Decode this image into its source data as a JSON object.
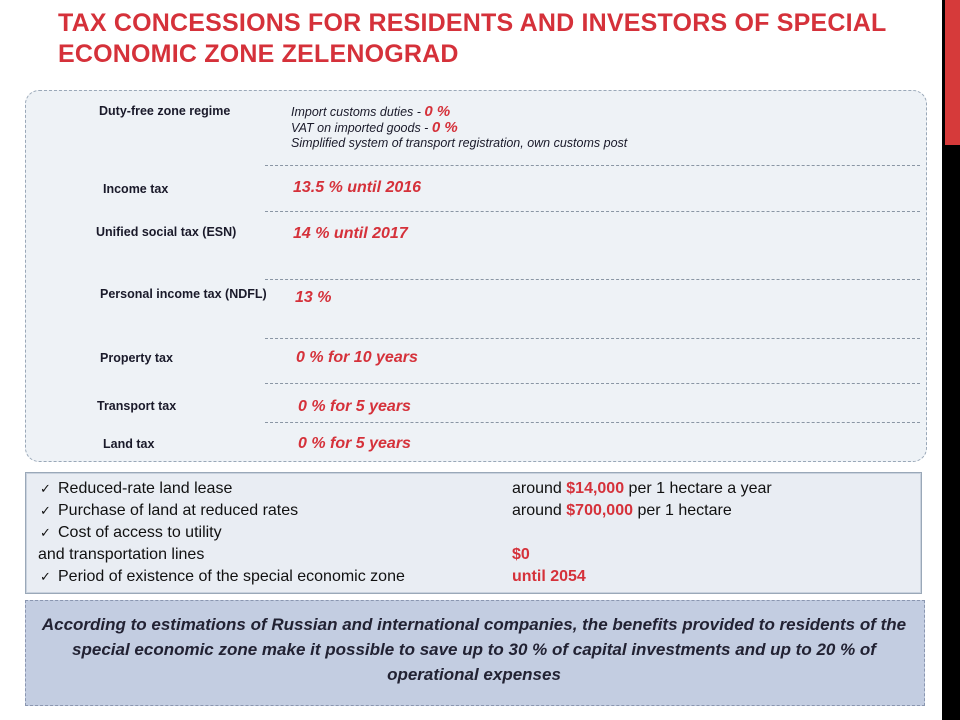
{
  "title": "TAX CONCESSIONS FOR RESIDENTS AND INVESTORS OF SPECIAL ECONOMIC ZONE ZELENOGRAD",
  "colors": {
    "title": "#d5313a",
    "accent_red": "#d5313a",
    "glyph_green": "#18a34a",
    "side_bar": "#000000"
  },
  "glyph_char": "",
  "taxes": {
    "duty_free": {
      "label": "Duty-free zone regime",
      "line1_prefix": "Import customs duties - ",
      "line1_value": "0 %",
      "line2_prefix": "VAT on imported goods - ",
      "line2_value": "0 %",
      "line3": "Simplified system of transport registration, own customs post"
    },
    "income": {
      "label": "Income tax",
      "value": "13.5 % until 2016"
    },
    "esn": {
      "label": "Unified social tax (ESN)",
      "value": "14 % until 2017"
    },
    "ndfl": {
      "label": "Personal income tax (NDFL)",
      "value": "13 %"
    },
    "property": {
      "label": "Property tax",
      "value": "0 % for 10 years"
    },
    "transport": {
      "label": "Transport tax",
      "value": "0 % for 5 years"
    },
    "land": {
      "label": "Land tax",
      "value": "0 % for 5 years"
    }
  },
  "benefits": [
    {
      "label": "Reduced-rate land lease",
      "value_prefix": "around ",
      "value_red": "$14,000",
      "value_suffix": " per 1 hectare a year"
    },
    {
      "label": "Purchase of land at reduced rates",
      "value_prefix": "around ",
      "value_red": "$700,000",
      "value_suffix": " per 1 hectare"
    },
    {
      "label_line1": "Cost of access to utility",
      "label_line2": "and transportation lines",
      "value_red": "$0"
    },
    {
      "label": "Period of existence of the special economic zone",
      "value_red": "until 2054"
    }
  ],
  "conclusion": "According to estimations of Russian and international companies, the benefits provided to residents of the special economic zone make it possible to save up to 30 % of capital investments and up to 20 % of operational expenses"
}
